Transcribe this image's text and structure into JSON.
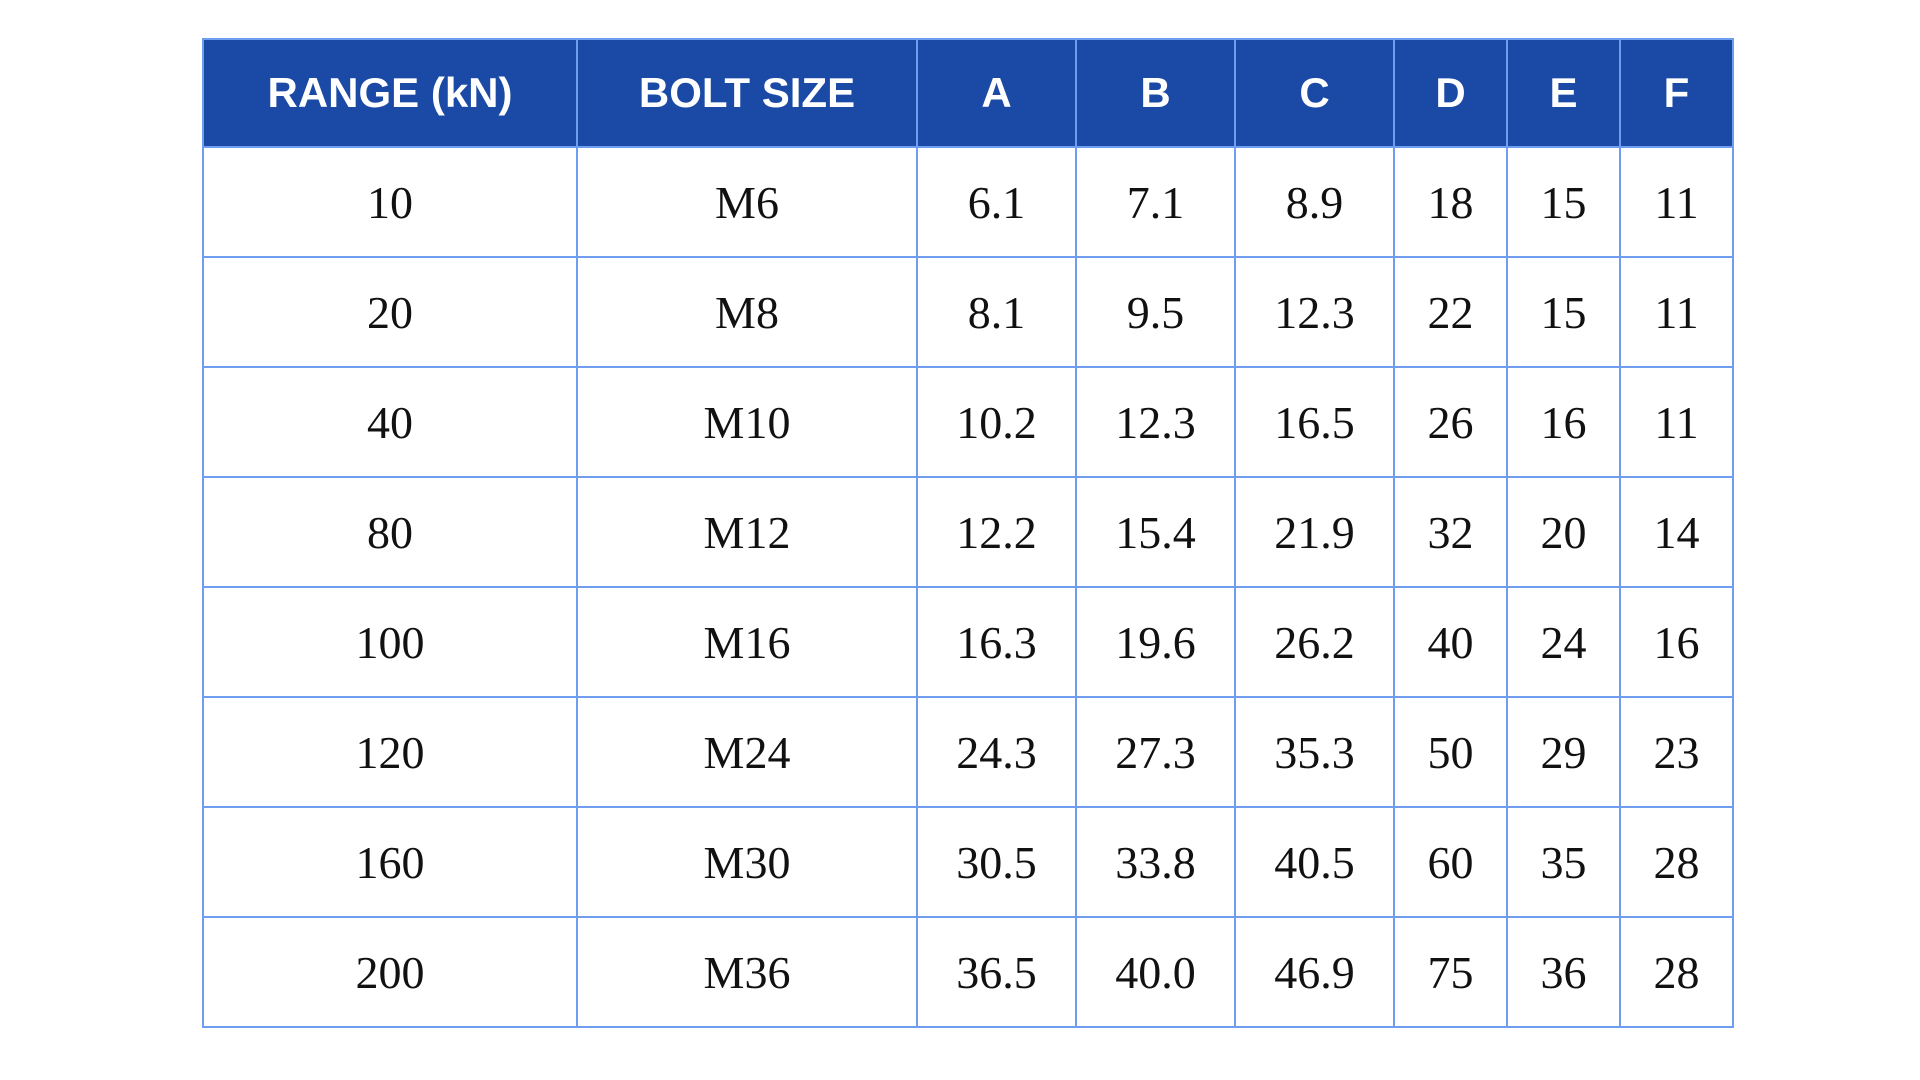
{
  "table": {
    "header_color": "#1b4aa6",
    "border_color": "#6f9ef0",
    "columns": [
      "RANGE (kN)",
      "BOLT SIZE",
      "A",
      "B",
      "C",
      "D",
      "E",
      "F"
    ],
    "rows": [
      [
        "10",
        "M6",
        "6.1",
        "7.1",
        "8.9",
        "18",
        "15",
        "11"
      ],
      [
        "20",
        "M8",
        "8.1",
        "9.5",
        "12.3",
        "22",
        "15",
        "11"
      ],
      [
        "40",
        "M10",
        "10.2",
        "12.3",
        "16.5",
        "26",
        "16",
        "11"
      ],
      [
        "80",
        "M12",
        "12.2",
        "15.4",
        "21.9",
        "32",
        "20",
        "14"
      ],
      [
        "100",
        "M16",
        "16.3",
        "19.6",
        "26.2",
        "40",
        "24",
        "16"
      ],
      [
        "120",
        "M24",
        "24.3",
        "27.3",
        "35.3",
        "50",
        "29",
        "23"
      ],
      [
        "160",
        "M30",
        "30.5",
        "33.8",
        "40.5",
        "60",
        "35",
        "28"
      ],
      [
        "200",
        "M36",
        "36.5",
        "40.0",
        "46.9",
        "75",
        "36",
        "28"
      ]
    ]
  }
}
